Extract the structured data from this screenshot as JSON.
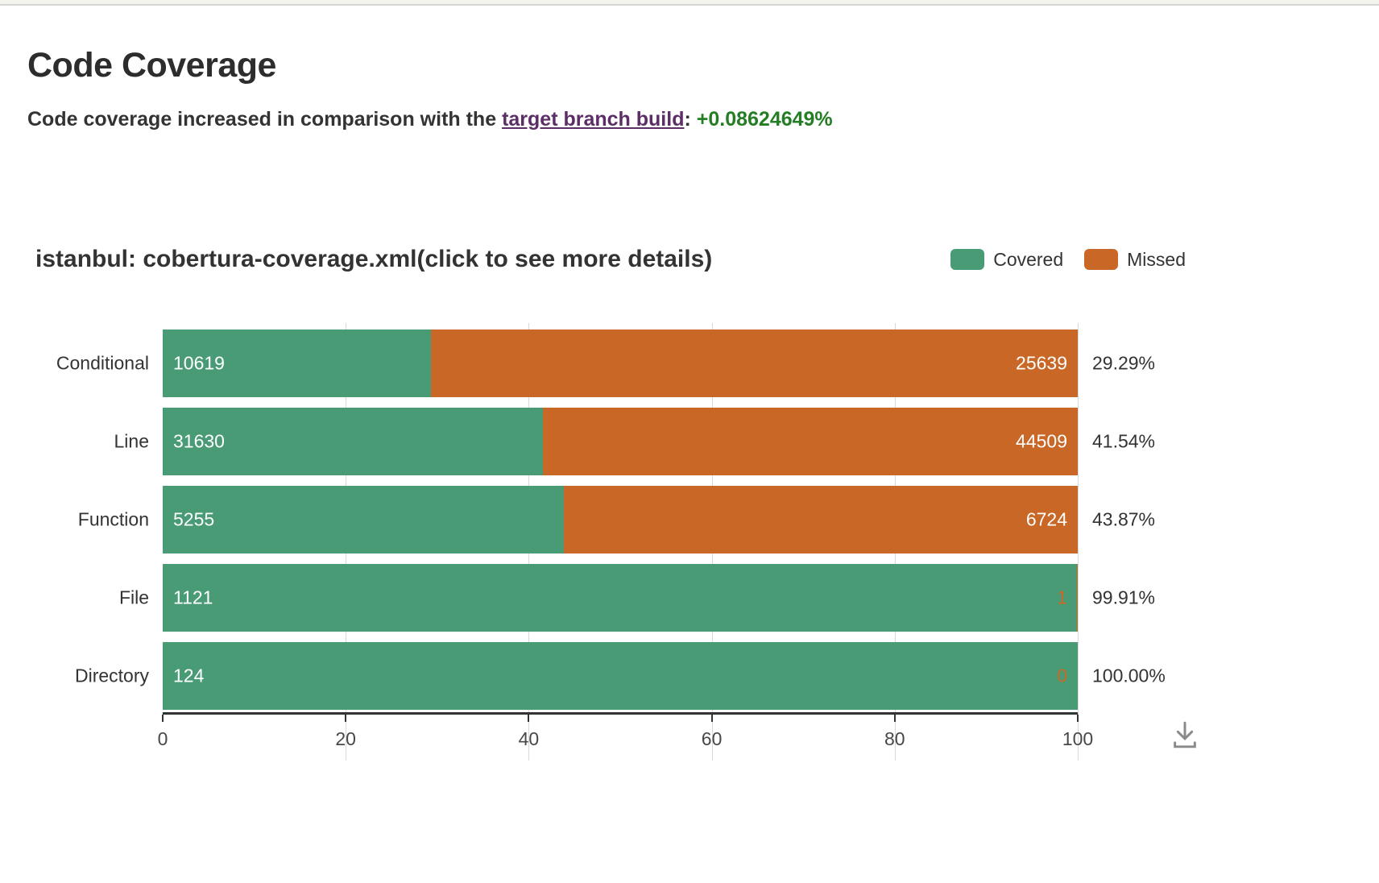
{
  "header": {
    "title": "Code Coverage",
    "subtitle_prefix": "Code coverage increased in comparison with the ",
    "link_text": "target branch build",
    "separator": ": ",
    "delta": "+0.08624649%"
  },
  "colors": {
    "covered": "#489b75",
    "missed": "#c96726",
    "link_purple": "#5c2d66",
    "delta_green": "#257d24"
  },
  "chart_data": {
    "type": "bar",
    "orientation": "horizontal",
    "stacked": true,
    "title": "istanbul: cobertura-coverage.xml(click to see more details)",
    "legend_position": "top-right",
    "grid": true,
    "categories": [
      "Conditional",
      "Line",
      "Function",
      "File",
      "Directory"
    ],
    "series": [
      {
        "name": "Covered",
        "color": "#489b75",
        "values": [
          10619,
          31630,
          5255,
          1121,
          124
        ]
      },
      {
        "name": "Missed",
        "color": "#c96726",
        "values": [
          25639,
          44509,
          6724,
          1,
          0
        ]
      }
    ],
    "covered_pct": [
      29.29,
      41.54,
      43.87,
      99.91,
      100.0
    ],
    "pct_labels": [
      "29.29%",
      "41.54%",
      "43.87%",
      "99.91%",
      "100.00%"
    ],
    "xlim": [
      0,
      100
    ],
    "xticks": [
      0,
      20,
      40,
      60,
      80,
      100
    ]
  },
  "toolbox": {
    "download_tooltip": "Save as image"
  }
}
